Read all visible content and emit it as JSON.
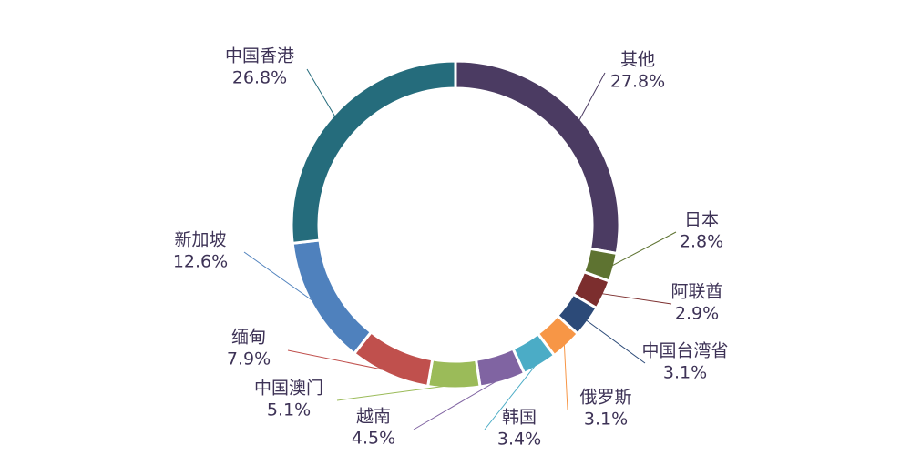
{
  "chart_data": {
    "type": "pie",
    "style": "donut",
    "categories": [
      "其他",
      "日本",
      "阿联酋",
      "中国台湾省",
      "俄罗斯",
      "韩国",
      "越南",
      "中国澳门",
      "缅甸",
      "新加坡",
      "中国香港"
    ],
    "values": [
      27.8,
      2.8,
      2.9,
      3.1,
      3.1,
      3.4,
      4.5,
      5.1,
      7.9,
      12.6,
      26.8
    ],
    "labels": [
      "27.8%",
      "2.8%",
      "2.9%",
      "3.1%",
      "3.1%",
      "3.4%",
      "4.5%",
      "5.1%",
      "7.9%",
      "12.6%",
      "26.8%"
    ],
    "colors": [
      "#4b3b62",
      "#5e7331",
      "#7c2e2e",
      "#2c4a78",
      "#f79646",
      "#4bacc6",
      "#8064a2",
      "#9bbb59",
      "#c0504d",
      "#4f81bd",
      "#256c7c"
    ],
    "title": "",
    "legend": "none"
  }
}
